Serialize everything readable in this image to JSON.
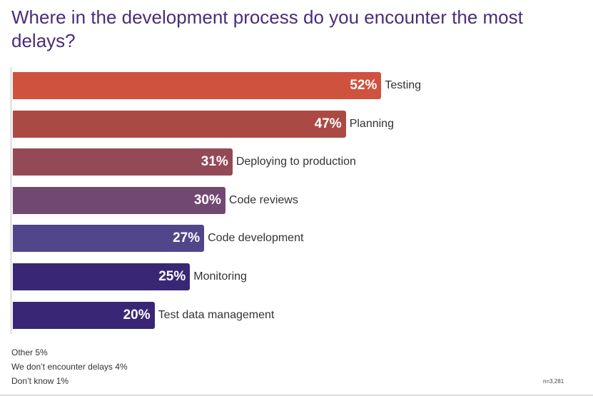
{
  "chart_data": {
    "type": "bar",
    "orientation": "horizontal",
    "title": "Where in the development process do you encounter the most delays?",
    "categories": [
      "Testing",
      "Planning",
      "Deploying to production",
      "Code reviews",
      "Code development",
      "Monitoring",
      "Test data management"
    ],
    "values": [
      52,
      47,
      31,
      30,
      27,
      25,
      20
    ],
    "value_labels": [
      "52%",
      "47%",
      "31%",
      "30%",
      "27%",
      "25%",
      "20%"
    ],
    "colors": [
      "#cf523e",
      "#ab4a45",
      "#944957",
      "#714970",
      "#52468a",
      "#392775",
      "#392775"
    ],
    "xlim": [
      0,
      100
    ],
    "grid": false
  },
  "notes": [
    "Other 5%",
    "We don’t encounter delays 4%",
    "Don’t know 1%"
  ],
  "sample_size": "n=3,281"
}
